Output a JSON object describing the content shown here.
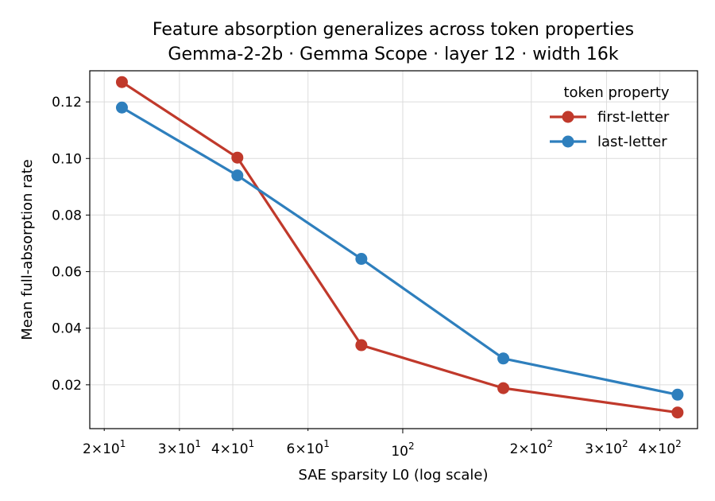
{
  "chart_data": {
    "type": "line",
    "title": "Feature absorption generalizes across token properties",
    "subtitle": "Gemma-2-2b · Gemma Scope · layer 12 · width 16k",
    "xlabel": "SAE sparsity L0 (log scale)",
    "ylabel": "Mean full-absorption rate",
    "xscale": "log",
    "grid": true,
    "xlim": [
      18.5,
      490
    ],
    "ylim": [
      0.0045,
      0.131
    ],
    "yticks": [
      0.02,
      0.04,
      0.06,
      0.08,
      0.1,
      0.12
    ],
    "ytick_labels": [
      "0.02",
      "0.04",
      "0.06",
      "0.08",
      "0.10",
      "0.12"
    ],
    "xticks_major": [
      100
    ],
    "xticks_major_labels": [
      {
        "base": "10",
        "exp": "2"
      }
    ],
    "xticks_minor": [
      20,
      30,
      40,
      60,
      200,
      300,
      400
    ],
    "xticks_minor_labels": [
      {
        "mant": "2",
        "base": "10",
        "exp": "1"
      },
      {
        "mant": "3",
        "base": "10",
        "exp": "1"
      },
      {
        "mant": "4",
        "base": "10",
        "exp": "1"
      },
      {
        "mant": "6",
        "base": "10",
        "exp": "1"
      },
      {
        "mant": "2",
        "base": "10",
        "exp": "2"
      },
      {
        "mant": "3",
        "base": "10",
        "exp": "2"
      },
      {
        "mant": "4",
        "base": "10",
        "exp": "2"
      }
    ],
    "legend": {
      "title": "token property",
      "placement": "top-right"
    },
    "series": [
      {
        "name": "first-letter",
        "color": "#c0392b",
        "x": [
          22,
          41,
          80,
          172,
          440
        ],
        "y": [
          0.127,
          0.1003,
          0.034,
          0.0188,
          0.0102
        ]
      },
      {
        "name": "last-letter",
        "color": "#2e7fbd",
        "x": [
          22,
          41,
          80,
          172,
          440
        ],
        "y": [
          0.118,
          0.094,
          0.0645,
          0.0293,
          0.0165
        ]
      }
    ]
  }
}
